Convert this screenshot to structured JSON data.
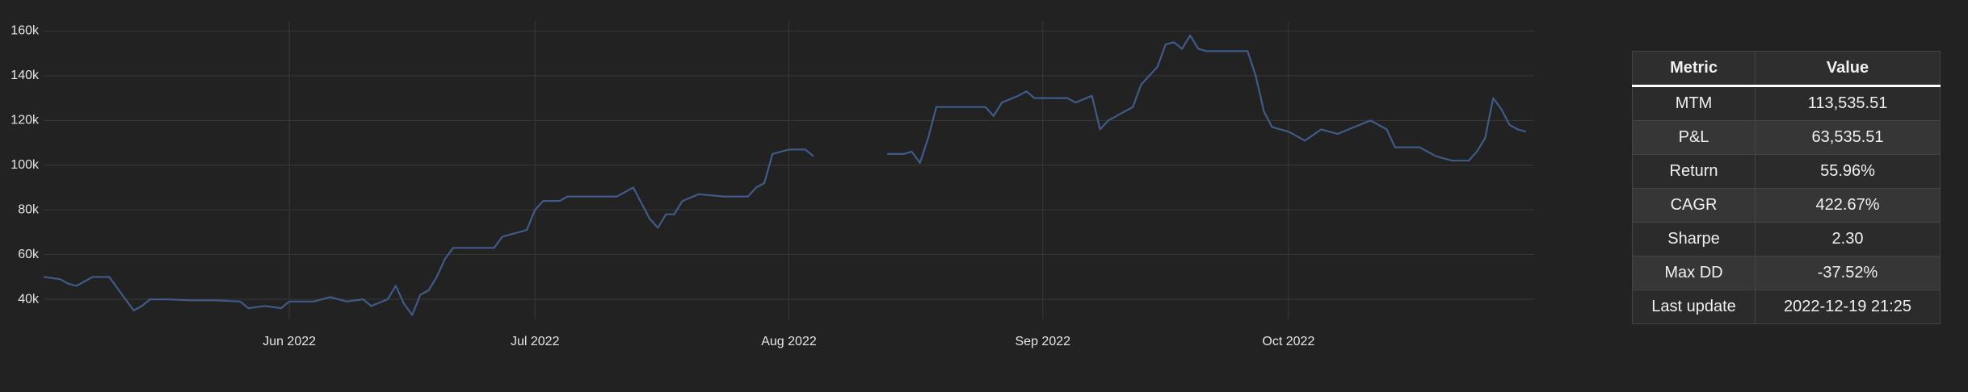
{
  "chart_data": {
    "type": "line",
    "xlim": [
      "2022-05-02",
      "2022-10-31"
    ],
    "xticks": [
      {
        "value": "2022-06-01",
        "label": "Jun 2022"
      },
      {
        "value": "2022-07-01",
        "label": "Jul 2022"
      },
      {
        "value": "2022-08-01",
        "label": "Aug 2022"
      },
      {
        "value": "2022-09-01",
        "label": "Sep 2022"
      },
      {
        "value": "2022-10-01",
        "label": "Oct 2022"
      }
    ],
    "ylim": [
      31000,
      164500
    ],
    "yticks": [
      {
        "value": 40000,
        "label": "40k"
      },
      {
        "value": 60000,
        "label": "60k"
      },
      {
        "value": 80000,
        "label": "80k"
      },
      {
        "value": 100000,
        "label": "100k"
      },
      {
        "value": 120000,
        "label": "120k"
      },
      {
        "value": 140000,
        "label": "140k"
      },
      {
        "value": 160000,
        "label": "160k"
      }
    ],
    "grid": true,
    "color": "#3f5b88",
    "x": [
      "2022-05-02",
      "2022-05-04",
      "2022-05-05",
      "2022-05-06",
      "2022-05-07",
      "2022-05-08",
      "2022-05-10",
      "2022-05-11",
      "2022-05-12",
      "2022-05-13",
      "2022-05-14",
      "2022-05-15",
      "2022-05-17",
      "2022-05-20",
      "2022-05-23",
      "2022-05-26",
      "2022-05-27",
      "2022-05-29",
      "2022-05-31",
      "2022-06-01",
      "2022-06-04",
      "2022-06-06",
      "2022-06-07",
      "2022-06-08",
      "2022-06-10",
      "2022-06-11",
      "2022-06-13",
      "2022-06-14",
      "2022-06-15",
      "2022-06-16",
      "2022-06-17",
      "2022-06-18",
      "2022-06-19",
      "2022-06-20",
      "2022-06-21",
      "2022-06-24",
      "2022-06-26",
      "2022-06-27",
      "2022-06-29",
      "2022-06-30",
      "2022-07-01",
      "2022-07-02",
      "2022-07-04",
      "2022-07-05",
      "2022-07-08",
      "2022-07-11",
      "2022-07-13",
      "2022-07-14",
      "2022-07-15",
      "2022-07-16",
      "2022-07-17",
      "2022-07-18",
      "2022-07-19",
      "2022-07-21",
      "2022-07-24",
      "2022-07-27",
      "2022-07-28",
      "2022-07-29",
      "2022-07-30",
      "2022-07-31",
      "2022-08-01",
      "2022-08-03",
      "2022-08-04",
      "2022-08-08",
      "2022-08-13",
      "2022-08-15",
      "2022-08-16",
      "2022-08-17",
      "2022-08-18",
      "2022-08-19",
      "2022-08-22",
      "2022-08-25",
      "2022-08-26",
      "2022-08-27",
      "2022-08-29",
      "2022-08-30",
      "2022-08-31",
      "2022-09-01",
      "2022-09-04",
      "2022-09-05",
      "2022-09-07",
      "2022-09-08",
      "2022-09-09",
      "2022-09-10",
      "2022-09-12",
      "2022-09-13",
      "2022-09-15",
      "2022-09-16",
      "2022-09-17",
      "2022-09-18",
      "2022-09-19",
      "2022-09-20",
      "2022-09-21",
      "2022-09-24",
      "2022-09-26",
      "2022-09-27",
      "2022-09-28",
      "2022-09-29",
      "2022-10-01",
      "2022-10-03",
      "2022-10-05",
      "2022-10-07",
      "2022-10-09",
      "2022-10-11",
      "2022-10-13",
      "2022-10-14",
      "2022-10-17",
      "2022-10-19",
      "2022-10-21",
      "2022-10-23",
      "2022-10-24",
      "2022-10-25",
      "2022-10-26",
      "2022-10-27",
      "2022-10-28",
      "2022-10-29",
      "2022-10-30"
    ],
    "values": [
      50000,
      49000,
      47000,
      46000,
      48000,
      50000,
      50000,
      45000,
      40000,
      35000,
      37000,
      40000,
      40000,
      39500,
      39500,
      39000,
      36000,
      37000,
      36000,
      39000,
      39000,
      41000,
      40000,
      39000,
      40000,
      37000,
      40000,
      46000,
      38000,
      33000,
      42000,
      44000,
      50000,
      58000,
      63000,
      63000,
      63000,
      68000,
      70000,
      71000,
      80000,
      84000,
      84000,
      86000,
      86000,
      86000,
      90000,
      83000,
      76000,
      72000,
      78000,
      78000,
      84000,
      87000,
      86000,
      86000,
      90000,
      92000,
      105000,
      106000,
      107000,
      107000,
      104000,
      null,
      105000,
      105000,
      106000,
      101000,
      112000,
      126000,
      126000,
      126000,
      122000,
      128000,
      131000,
      133000,
      130000,
      130000,
      130000,
      128000,
      131000,
      116000,
      120000,
      122000,
      126000,
      136000,
      144000,
      154000,
      155000,
      152000,
      158000,
      152000,
      151000,
      151000,
      151000,
      140000,
      124000,
      117000,
      115000,
      111000,
      116000,
      114000,
      117000,
      120000,
      116000,
      108000,
      108000,
      104000,
      102000,
      102000,
      106000,
      112000,
      130000,
      125000,
      118000,
      116000,
      115000
    ]
  },
  "table": {
    "header": [
      "Metric",
      "Value"
    ],
    "rows": [
      [
        "MTM",
        "113,535.51"
      ],
      [
        "P&L",
        "63,535.51"
      ],
      [
        "Return",
        "55.96%"
      ],
      [
        "CAGR",
        "422.67%"
      ],
      [
        "Sharpe",
        "2.30"
      ],
      [
        "Max DD",
        "-37.52%"
      ],
      [
        "Last update",
        "2022-12-19 21:25"
      ]
    ]
  }
}
